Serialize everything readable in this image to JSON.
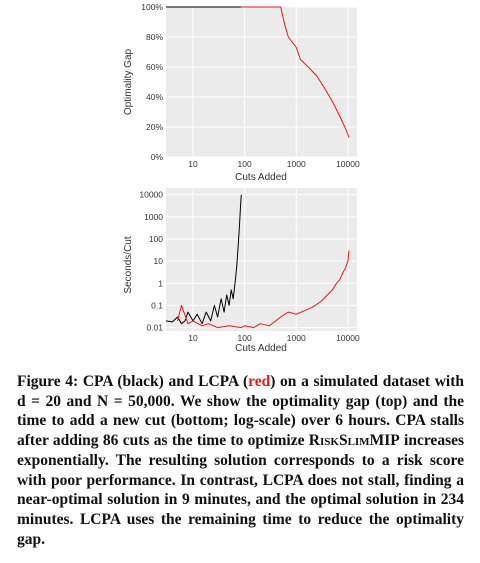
{
  "chart_data": [
    {
      "type": "line",
      "title": "",
      "xlabel": "Cuts Added",
      "ylabel": "Optimality Gap",
      "x_scale": "log",
      "xlim": [
        3,
        15000
      ],
      "ylim": [
        0,
        100
      ],
      "x_ticks": [
        "10",
        "100",
        "1000",
        "10000"
      ],
      "y_ticks": [
        "0%",
        "20%",
        "40%",
        "60%",
        "80%",
        "100%"
      ],
      "grid": true,
      "series": [
        {
          "color": "#000000",
          "x": [
            3,
            86
          ],
          "y": [
            100,
            100
          ]
        },
        {
          "color": "#e41a1c",
          "x": [
            86,
            300,
            500,
            600,
            700,
            1000,
            1200,
            1700,
            2500,
            3500,
            5000,
            7000,
            9000,
            10500
          ],
          "y": [
            100,
            100,
            100,
            88,
            80,
            73,
            65,
            60,
            54,
            46,
            37,
            27,
            19,
            13
          ]
        }
      ]
    },
    {
      "type": "line",
      "title": "",
      "xlabel": "Cuts Added",
      "ylabel": "Seconds/Cut",
      "x_scale": "log",
      "y_scale": "log",
      "xlim": [
        3,
        15000
      ],
      "ylim": [
        0.007,
        20000
      ],
      "x_ticks": [
        "10",
        "100",
        "1000",
        "10000"
      ],
      "y_ticks": [
        "0.01",
        "0.1",
        "1",
        "10",
        "100",
        "1000",
        "10000"
      ],
      "grid": true,
      "series": [
        {
          "color": "#000000",
          "x": [
            3,
            4,
            5,
            6,
            7,
            8,
            10,
            12,
            15,
            18,
            22,
            26,
            30,
            35,
            40,
            45,
            50,
            55,
            60,
            65,
            70,
            75,
            80,
            83,
            86
          ],
          "y": [
            0.02,
            0.018,
            0.03,
            0.015,
            0.02,
            0.05,
            0.02,
            0.04,
            0.015,
            0.05,
            0.02,
            0.1,
            0.03,
            0.2,
            0.05,
            0.3,
            0.1,
            0.5,
            0.2,
            1.0,
            5,
            50,
            500,
            3000,
            10000
          ]
        },
        {
          "color": "#e41a1c",
          "x": [
            5,
            6,
            8,
            10,
            15,
            20,
            30,
            50,
            86,
            100,
            150,
            200,
            300,
            400,
            500,
            700,
            1000,
            1500,
            2000,
            3000,
            4000,
            5000,
            6000,
            7000,
            8000,
            9000,
            10000,
            10500
          ],
          "y": [
            0.02,
            0.1,
            0.015,
            0.02,
            0.012,
            0.015,
            0.01,
            0.012,
            0.01,
            0.012,
            0.01,
            0.015,
            0.012,
            0.02,
            0.03,
            0.05,
            0.04,
            0.06,
            0.08,
            0.15,
            0.3,
            0.5,
            1.0,
            1.5,
            3,
            5,
            10,
            30
          ]
        }
      ]
    }
  ],
  "caption": {
    "label": "Figure 4: CPA (black) and LCPA (",
    "red_word": "red",
    "text_after_red": ") on a simulated dataset with d = 20 and N = 50,000. We show the optimality gap (top) and the time to add a new cut (bottom; log-scale) over 6 hours. CPA stalls after adding 86 cuts as the time to optimize ",
    "smallcaps": "RiskSlimMIP",
    "text_end": " increases exponentially. The resulting solution corresponds to a risk score with poor performance. In contrast, LCPA does not stall, finding a near-optimal solution in 9 minutes, and the optimal solution in 234 minutes. LCPA uses the remaining time to reduce the optimality gap."
  }
}
